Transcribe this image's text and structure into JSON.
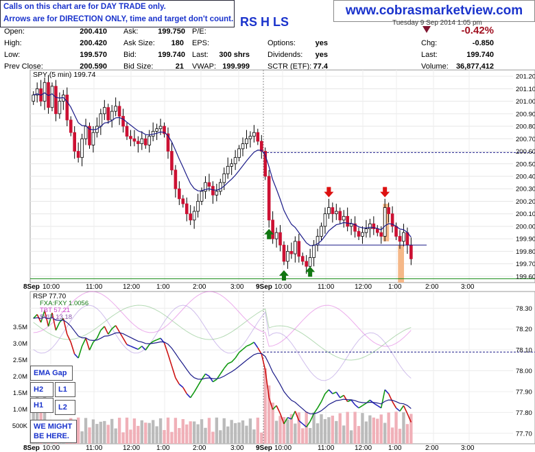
{
  "notice": {
    "line1": "Calls on this chart are for DAY TRADE only.",
    "line2": "Arrows are for DIRECTION ONLY, time and target don't count."
  },
  "website": "www.cobrasmarketview.com",
  "header": {
    "symbol_fragment": "RS H LS",
    "date_fragment": "Tuesday  9 Sep 2014 1:05 pm"
  },
  "quote": {
    "open_label": "Open:",
    "open": "200.410",
    "high_label": "High:",
    "high": "200.420",
    "low_label": "Low:",
    "low": "199.570",
    "prev_label": "Prev Close:",
    "prev": "200.590",
    "ask_label": "Ask:",
    "ask": "199.750",
    "asksize_label": "Ask Size:",
    "asksize": "180",
    "bid_label": "Bid:",
    "bid": "199.740",
    "bidsize_label": "Bid Size:",
    "bidsize": "21",
    "pe_label": "P/E:",
    "eps_label": "EPS:",
    "last_label": "Last:",
    "last_shrs": "300 shrs",
    "vwap_label": "VWAP:",
    "vwap": "199.999",
    "options_label": "Options:",
    "options": "yes",
    "div_label": "Dividends:",
    "div": "yes",
    "sctr_label": "SCTR (ETF):",
    "sctr": "77.4",
    "change_pct": "-0.42%",
    "chg_label": "Chg:",
    "chg": "-0.850",
    "last2_label": "Last:",
    "last2": "199.740",
    "vol_label": "Volume:",
    "vol": "36,877,412"
  },
  "colors": {
    "up": "#ffffff",
    "down": "#cc1133",
    "ema": "#1a1a88",
    "level": "#1a1a88",
    "green_arrow": "#117711",
    "red_arrow": "#dd1111",
    "highlight": "#f5b888",
    "rsp_green": "#119911",
    "rsp_blue": "#2222bb",
    "rsp_red": "#cc1111",
    "fxa": "#77bb77",
    "tbt": "#dd66dd",
    "vix": "#aa88dd"
  },
  "chart_data": [
    {
      "type": "candlestick",
      "title": "SPY (5 min) 199.74",
      "ylim": [
        199.55,
        201.25
      ],
      "yticks": [
        "201.20",
        "201.10",
        "201.00",
        "200.90",
        "200.80",
        "200.70",
        "200.60",
        "200.50",
        "200.40",
        "200.30",
        "200.20",
        "200.10",
        "200.00",
        "199.90",
        "199.80",
        "199.70",
        "199.60"
      ],
      "xticks": [
        "8Sep",
        "10:00",
        "11:00",
        "12:00",
        "1:00",
        "2:00",
        "3:00",
        "9Sep",
        "10:00",
        "11:00",
        "12:00",
        "1:00",
        "2:00",
        "3:00"
      ],
      "prev_close_level": 200.59,
      "support_level": 199.85,
      "green_line_level": 199.57,
      "arrows": [
        {
          "dir": "up",
          "day": 2,
          "bar": 1
        },
        {
          "dir": "up",
          "day": 2,
          "bar": 5
        },
        {
          "dir": "up",
          "day": 2,
          "bar": 12
        },
        {
          "dir": "down",
          "day": 2,
          "bar": 17
        },
        {
          "dir": "down",
          "day": 2,
          "bar": 32
        }
      ],
      "highlights": [
        {
          "day": 2,
          "bar": 32
        },
        {
          "day": 2,
          "bar": 36
        }
      ],
      "closes_day1": [
        201.05,
        201.1,
        201.0,
        201.15,
        200.95,
        201.12,
        200.9,
        201.0,
        201.05,
        200.85,
        200.75,
        200.6,
        200.55,
        200.7,
        200.8,
        200.65,
        200.75,
        200.8,
        200.9,
        200.95,
        200.85,
        200.92,
        200.96,
        200.88,
        200.8,
        200.72,
        200.7,
        200.68,
        200.66,
        200.7,
        200.65,
        200.72,
        200.76,
        200.78,
        200.8,
        200.74,
        200.6,
        200.45,
        200.3,
        200.22,
        200.18,
        200.1,
        200.05,
        200.12,
        200.2,
        200.28,
        200.35,
        200.32,
        200.25,
        200.28,
        200.35,
        200.42,
        200.48,
        200.5,
        200.55,
        200.62,
        200.66,
        200.7,
        200.72,
        200.75,
        200.68,
        200.6
      ],
      "closes_day2": [
        200.4,
        200.05,
        199.9,
        199.95,
        199.85,
        199.72,
        199.8,
        199.78,
        199.88,
        199.76,
        199.72,
        199.68,
        199.75,
        199.85,
        199.92,
        200.0,
        200.1,
        200.15,
        200.1,
        200.12,
        200.05,
        200.08,
        200.0,
        200.02,
        199.96,
        199.92,
        199.95,
        199.98,
        200.02,
        199.98,
        199.95,
        199.92,
        200.15,
        200.1,
        200.0,
        199.92,
        199.88,
        199.95,
        199.85,
        199.74
      ]
    },
    {
      "type": "line",
      "title": "RSP 77.70",
      "series_labels": [
        "FXA:FXY 1.0056",
        "TBT 57.21",
        "$VIX 13.18"
      ],
      "ylim": [
        77.65,
        78.38
      ],
      "yticks": [
        "78.30",
        "78.20",
        "78.10",
        "78.00",
        "77.90",
        "77.80",
        "77.70"
      ],
      "prev_close_level": 78.09,
      "volume_ticks": [
        "3.5M",
        "3.0M",
        "2.5M",
        "2.0M",
        "1.5M",
        "1.0M",
        "500K"
      ]
    }
  ],
  "side_notes": {
    "ema_gap": "EMA Gap",
    "h2": "H2",
    "l1": "L1",
    "h1": "H1",
    "l2": "L2",
    "might": "WE MIGHT BE HERE."
  }
}
